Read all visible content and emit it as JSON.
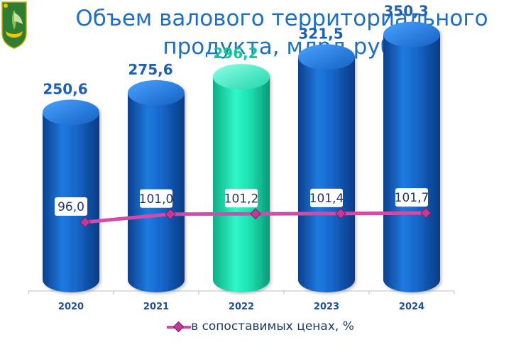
{
  "title_lines": [
    "Объем валового территориального",
    "продукта, млрд руб."
  ],
  "chart_data": {
    "type": "bar",
    "categories": [
      "2020",
      "2021",
      "2022",
      "2023",
      "2024"
    ],
    "series": [
      {
        "type": "bar",
        "values": [
          250.6,
          275.6,
          296.2,
          321.5,
          350.3
        ],
        "labels": [
          "250,6",
          "275,6",
          "296,2",
          "321,5",
          "350,3"
        ]
      },
      {
        "type": "line",
        "name": "в сопоставимых ценах, %",
        "values": [
          96.0,
          101.0,
          101.2,
          101.4,
          101.7
        ],
        "labels": [
          "96,0",
          "101,0",
          "101,2",
          "101,4",
          "101,7"
        ]
      }
    ],
    "highlight_category": "2022",
    "colors": {
      "bar": "#1565c8",
      "bar_highlight": "#1de0b0",
      "line": "#d34ba8",
      "label": "#1f5fb4",
      "label_highlight": "#12c69a"
    },
    "legend": "bottom-center"
  }
}
